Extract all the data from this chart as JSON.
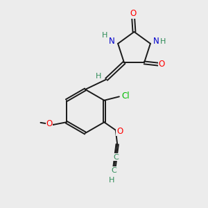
{
  "bg_color": "#ececec",
  "bond_color": "#1a1a1a",
  "atom_colors": {
    "O": "#ff0000",
    "N": "#0000cc",
    "Cl": "#00bb00",
    "C": "#2e8b57",
    "H": "#2e8b57"
  },
  "figsize": [
    3.0,
    3.0
  ],
  "dpi": 100
}
